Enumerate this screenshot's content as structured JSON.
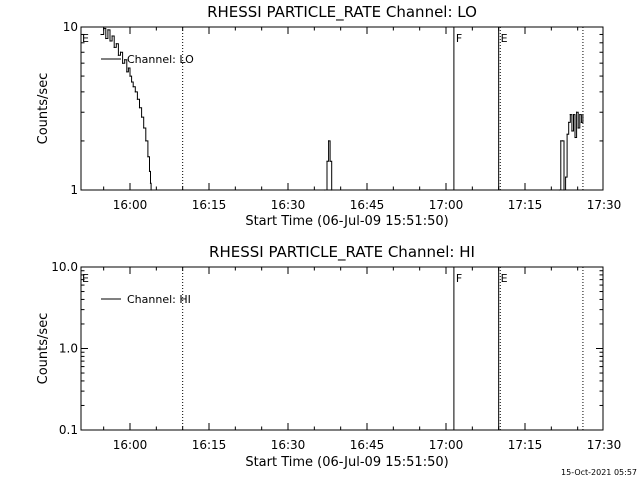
{
  "footer": {
    "timestamp": "15-Oct-2021 05:57"
  },
  "chart_data": [
    {
      "type": "line",
      "title": "RHESSI PARTICLE_RATE Channel: LO",
      "xlabel": "Start Time (06-Jul-09 15:51:50)",
      "ylabel": "Counts/sec",
      "yscale": "log",
      "ylim": [
        1,
        10
      ],
      "xlim_minutes": [
        15.833,
        17.55
      ],
      "x_ticks": [
        "16:00",
        "16:15",
        "16:30",
        "16:45",
        "17:00",
        "17:15",
        "17:30"
      ],
      "x_tick_minutes": [
        0,
        15,
        30,
        45,
        60,
        75,
        90
      ],
      "y_ticks": [
        "1",
        "10"
      ],
      "y_tick_values": [
        1,
        10
      ],
      "legend": "Channel: LO",
      "legend_position": "top-left",
      "markers": [
        {
          "label": "E",
          "minute": -5.5,
          "style": "none"
        },
        {
          "label": "F",
          "minute": 61.5,
          "style": "solid"
        },
        {
          "label": "E",
          "minute": 70.0,
          "style": "solid"
        }
      ],
      "dotted_lines_minutes": [
        10.0,
        70.3,
        86.0
      ],
      "series": [
        {
          "values_minutes": [
            -5.5,
            -5.0,
            -4.6,
            -4.2,
            -3.8,
            -3.4,
            -3.0,
            -2.6,
            -2.2,
            -1.8,
            -1.4,
            -1.0,
            -0.6,
            -0.3,
            0.0,
            0.3,
            0.6,
            1.0,
            1.4,
            1.8,
            2.2,
            2.6,
            3.0,
            3.4,
            3.7,
            3.9,
            4.0
          ],
          "values": [
            9.0,
            9.8,
            8.5,
            9.6,
            8.2,
            8.8,
            7.5,
            7.9,
            6.7,
            7.0,
            6.0,
            6.3,
            5.3,
            5.6,
            5.0,
            4.6,
            4.3,
            4.0,
            3.6,
            3.2,
            2.8,
            2.4,
            2.0,
            1.6,
            1.3,
            1.1,
            1.0
          ]
        },
        {
          "values_minutes": [
            37.0,
            37.4,
            37.7,
            38.0,
            38.3
          ],
          "values": [
            1.0,
            1.5,
            2.0,
            1.5,
            1.0
          ]
        },
        {
          "values_minutes": [
            81.5,
            81.8,
            82.1,
            82.4,
            82.7,
            83.0,
            83.3,
            83.6,
            83.9,
            84.2,
            84.5,
            84.8,
            85.1,
            85.4,
            85.7,
            86.0
          ],
          "values": [
            1.0,
            2.0,
            2.0,
            1.0,
            1.2,
            2.2,
            2.6,
            2.9,
            2.3,
            2.9,
            2.1,
            3.0,
            2.4,
            2.9,
            2.6,
            2.9
          ]
        }
      ]
    },
    {
      "type": "line",
      "title": "RHESSI PARTICLE_RATE Channel: HI",
      "xlabel": "Start Time (06-Jul-09 15:51:50)",
      "ylabel": "Counts/sec",
      "yscale": "log",
      "ylim": [
        0.1,
        10
      ],
      "xlim_minutes": [
        15.833,
        17.55
      ],
      "x_ticks": [
        "16:00",
        "16:15",
        "16:30",
        "16:45",
        "17:00",
        "17:15",
        "17:30"
      ],
      "x_tick_minutes": [
        0,
        15,
        30,
        45,
        60,
        75,
        90
      ],
      "y_ticks": [
        "0.1",
        "1.0",
        "10.0"
      ],
      "y_tick_values": [
        0.1,
        1,
        10
      ],
      "legend": "Channel: HI",
      "legend_position": "top-left",
      "markers": [
        {
          "label": "E",
          "minute": -5.5,
          "style": "none"
        },
        {
          "label": "F",
          "minute": 61.5,
          "style": "solid"
        },
        {
          "label": "E",
          "minute": 70.0,
          "style": "solid"
        }
      ],
      "dotted_lines_minutes": [
        10.0,
        70.3,
        86.0
      ],
      "series": []
    }
  ]
}
